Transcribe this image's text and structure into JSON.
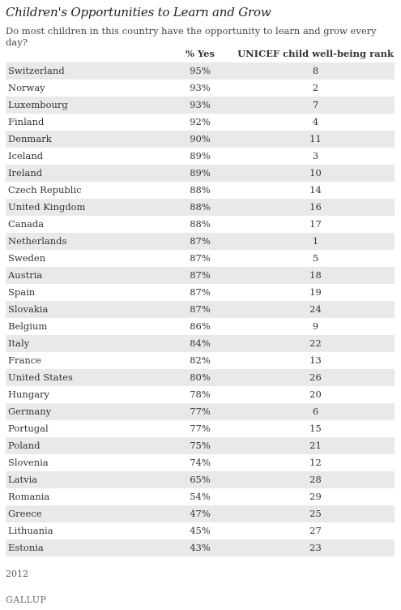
{
  "title": "Children's Opportunities to Learn and Grow",
  "subtitle": "Do most children in this country have the opportunity to learn and grow every day?",
  "footer": {
    "year": "2012",
    "brand": "GALLUP"
  },
  "chart_data": {
    "type": "table",
    "columns": [
      "",
      "% Yes",
      "UNICEF child well-being rank"
    ],
    "rows": [
      [
        "Switzerland",
        "95%",
        "8"
      ],
      [
        "Norway",
        "93%",
        "2"
      ],
      [
        "Luxembourg",
        "93%",
        "7"
      ],
      [
        "Finland",
        "92%",
        "4"
      ],
      [
        "Denmark",
        "90%",
        "11"
      ],
      [
        "Iceland",
        "89%",
        "3"
      ],
      [
        "Ireland",
        "89%",
        "10"
      ],
      [
        "Czech Republic",
        "88%",
        "14"
      ],
      [
        "United Kingdom",
        "88%",
        "16"
      ],
      [
        "Canada",
        "88%",
        "17"
      ],
      [
        "Netherlands",
        "87%",
        "1"
      ],
      [
        "Sweden",
        "87%",
        "5"
      ],
      [
        "Austria",
        "87%",
        "18"
      ],
      [
        "Spain",
        "87%",
        "19"
      ],
      [
        "Slovakia",
        "87%",
        "24"
      ],
      [
        "Belgium",
        "86%",
        "9"
      ],
      [
        "Italy",
        "84%",
        "22"
      ],
      [
        "France",
        "82%",
        "13"
      ],
      [
        "United States",
        "80%",
        "26"
      ],
      [
        "Hungary",
        "78%",
        "20"
      ],
      [
        "Germany",
        "77%",
        "6"
      ],
      [
        "Portugal",
        "77%",
        "15"
      ],
      [
        "Poland",
        "75%",
        "21"
      ],
      [
        "Slovenia",
        "74%",
        "12"
      ],
      [
        "Latvia",
        "65%",
        "28"
      ],
      [
        "Romania",
        "54%",
        "29"
      ],
      [
        "Greece",
        "47%",
        "25"
      ],
      [
        "Lithuania",
        "45%",
        "27"
      ],
      [
        "Estonia",
        "43%",
        "23"
      ]
    ]
  }
}
